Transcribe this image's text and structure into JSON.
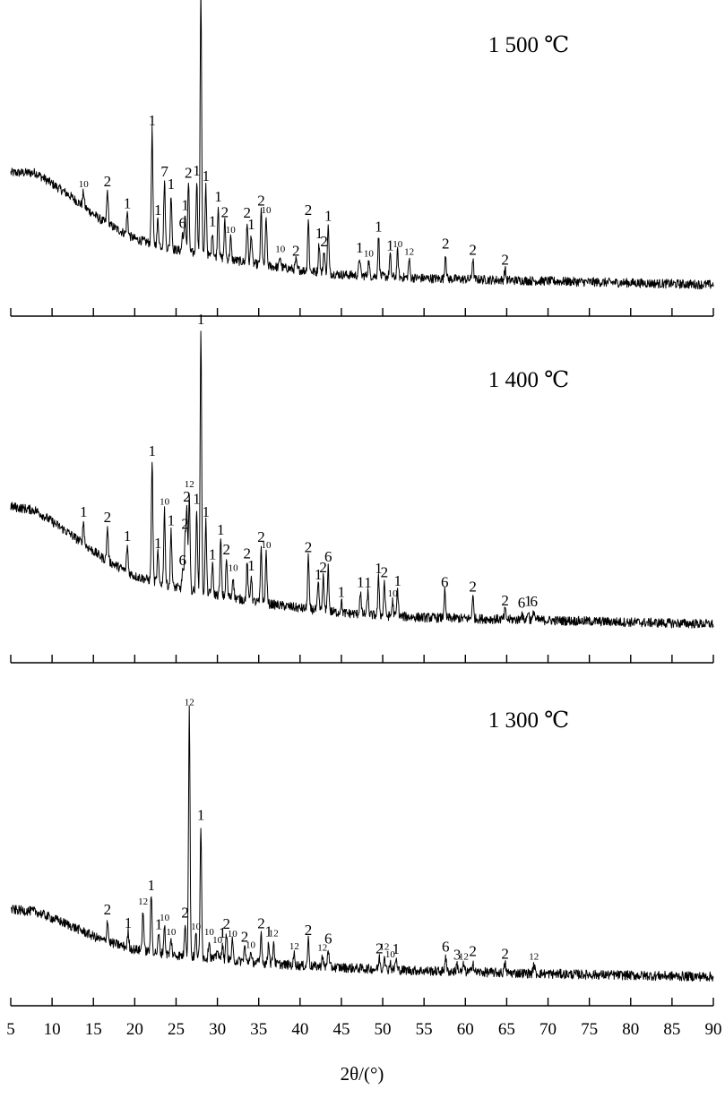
{
  "chart_data": {
    "type": "line",
    "xlabel": "2θ/(°)",
    "xlim": [
      5,
      90
    ],
    "x_ticks": [
      5,
      10,
      15,
      20,
      25,
      30,
      35,
      40,
      45,
      50,
      55,
      60,
      65,
      70,
      75,
      80,
      85,
      90
    ],
    "grid": false,
    "panels": [
      {
        "label": "1 500 ℃",
        "baseline": [
          [
            5,
            0.62
          ],
          [
            8,
            0.62
          ],
          [
            12,
            0.5
          ],
          [
            16,
            0.36
          ],
          [
            20,
            0.26
          ],
          [
            25,
            0.2
          ],
          [
            30,
            0.16
          ],
          [
            35,
            0.12
          ],
          [
            40,
            0.09
          ],
          [
            45,
            0.065
          ],
          [
            50,
            0.055
          ],
          [
            55,
            0.045
          ],
          [
            60,
            0.04
          ],
          [
            65,
            0.035
          ],
          [
            70,
            0.03
          ],
          [
            75,
            0.025
          ],
          [
            80,
            0.02
          ],
          [
            85,
            0.015
          ],
          [
            90,
            0.01
          ]
        ],
        "peaks": [
          {
            "x": 13.8,
            "h": 0.08,
            "label": "10"
          },
          {
            "x": 16.7,
            "h": 0.18,
            "label": "2"
          },
          {
            "x": 19.1,
            "h": 0.12,
            "label": "1"
          },
          {
            "x": 22.1,
            "h": 0.62,
            "label": "1"
          },
          {
            "x": 22.8,
            "h": 0.14,
            "label": "1"
          },
          {
            "x": 23.6,
            "h": 0.36,
            "label": "7"
          },
          {
            "x": 24.4,
            "h": 0.3,
            "label": "1"
          },
          {
            "x": 25.8,
            "h": 0.1,
            "label": "6"
          },
          {
            "x": 26.1,
            "h": 0.2,
            "label": "1"
          },
          {
            "x": 26.5,
            "h": 0.38,
            "label": "2"
          },
          {
            "x": 27.5,
            "h": 0.4,
            "label": "1"
          },
          {
            "x": 28.0,
            "h": 1.45,
            "label": "1"
          },
          {
            "x": 28.6,
            "h": 0.38,
            "label": "1"
          },
          {
            "x": 29.4,
            "h": 0.14,
            "label": "1"
          },
          {
            "x": 30.1,
            "h": 0.28,
            "label": "1"
          },
          {
            "x": 30.9,
            "h": 0.2,
            "label": "2"
          },
          {
            "x": 31.6,
            "h": 0.12,
            "label": "10"
          },
          {
            "x": 33.6,
            "h": 0.22,
            "label": "2"
          },
          {
            "x": 34.1,
            "h": 0.16,
            "label": "1"
          },
          {
            "x": 35.3,
            "h": 0.3,
            "label": "2"
          },
          {
            "x": 35.9,
            "h": 0.26,
            "label": "10"
          },
          {
            "x": 37.6,
            "h": 0.06,
            "label": "10"
          },
          {
            "x": 39.5,
            "h": 0.05,
            "label": "2"
          },
          {
            "x": 41.0,
            "h": 0.28,
            "label": "2"
          },
          {
            "x": 42.3,
            "h": 0.16,
            "label": "1"
          },
          {
            "x": 42.9,
            "h": 0.12,
            "label": "2"
          },
          {
            "x": 43.4,
            "h": 0.26,
            "label": "1"
          },
          {
            "x": 47.2,
            "h": 0.1,
            "label": "1"
          },
          {
            "x": 48.3,
            "h": 0.08,
            "label": "10"
          },
          {
            "x": 49.5,
            "h": 0.22,
            "label": "1"
          },
          {
            "x": 50.9,
            "h": 0.12,
            "label": "1"
          },
          {
            "x": 51.8,
            "h": 0.14,
            "label": "10"
          },
          {
            "x": 53.2,
            "h": 0.1,
            "label": "12"
          },
          {
            "x": 57.6,
            "h": 0.14,
            "label": "2"
          },
          {
            "x": 60.9,
            "h": 0.11,
            "label": "2"
          },
          {
            "x": 64.8,
            "h": 0.06,
            "label": "2"
          }
        ]
      },
      {
        "label": "1 400 ℃",
        "baseline": [
          [
            5,
            0.64
          ],
          [
            8,
            0.62
          ],
          [
            12,
            0.5
          ],
          [
            16,
            0.37
          ],
          [
            20,
            0.27
          ],
          [
            25,
            0.21
          ],
          [
            30,
            0.17
          ],
          [
            35,
            0.13
          ],
          [
            40,
            0.1
          ],
          [
            45,
            0.075
          ],
          [
            50,
            0.06
          ],
          [
            55,
            0.05
          ],
          [
            60,
            0.045
          ],
          [
            65,
            0.04
          ],
          [
            70,
            0.035
          ],
          [
            75,
            0.03
          ],
          [
            80,
            0.025
          ],
          [
            85,
            0.02
          ],
          [
            90,
            0.015
          ]
        ],
        "peaks": [
          {
            "x": 13.8,
            "h": 0.12,
            "label": "1"
          },
          {
            "x": 16.7,
            "h": 0.18,
            "label": "2"
          },
          {
            "x": 19.1,
            "h": 0.14,
            "label": "1"
          },
          {
            "x": 22.1,
            "h": 0.64,
            "label": "1"
          },
          {
            "x": 22.8,
            "h": 0.16,
            "label": "1"
          },
          {
            "x": 23.6,
            "h": 0.4,
            "label": "10"
          },
          {
            "x": 24.4,
            "h": 0.3,
            "label": "1"
          },
          {
            "x": 25.8,
            "h": 0.1,
            "label": "6"
          },
          {
            "x": 26.1,
            "h": 0.26,
            "label": "2"
          },
          {
            "x": 26.3,
            "h": 0.42,
            "label": "2"
          },
          {
            "x": 26.6,
            "h": 0.52,
            "label": "12"
          },
          {
            "x": 27.5,
            "h": 0.44,
            "label": "1"
          },
          {
            "x": 28.0,
            "h": 1.4,
            "label": "1"
          },
          {
            "x": 28.6,
            "h": 0.38,
            "label": "1"
          },
          {
            "x": 29.4,
            "h": 0.16,
            "label": "1"
          },
          {
            "x": 30.4,
            "h": 0.3,
            "label": "1"
          },
          {
            "x": 31.1,
            "h": 0.2,
            "label": "2"
          },
          {
            "x": 31.9,
            "h": 0.12,
            "label": "10"
          },
          {
            "x": 33.6,
            "h": 0.2,
            "label": "2"
          },
          {
            "x": 34.1,
            "h": 0.14,
            "label": "1"
          },
          {
            "x": 35.3,
            "h": 0.3,
            "label": "2"
          },
          {
            "x": 35.9,
            "h": 0.27,
            "label": "10"
          },
          {
            "x": 41.0,
            "h": 0.28,
            "label": "2"
          },
          {
            "x": 42.2,
            "h": 0.14,
            "label": "1"
          },
          {
            "x": 42.8,
            "h": 0.18,
            "label": "2"
          },
          {
            "x": 43.4,
            "h": 0.24,
            "label": "6"
          },
          {
            "x": 45.0,
            "h": 0.06,
            "label": "1"
          },
          {
            "x": 47.3,
            "h": 0.12,
            "label": "1"
          },
          {
            "x": 48.2,
            "h": 0.12,
            "label": "1"
          },
          {
            "x": 49.5,
            "h": 0.2,
            "label": "1"
          },
          {
            "x": 50.2,
            "h": 0.18,
            "label": "2"
          },
          {
            "x": 51.2,
            "h": 0.08,
            "label": "10"
          },
          {
            "x": 51.8,
            "h": 0.14,
            "label": "1"
          },
          {
            "x": 57.5,
            "h": 0.14,
            "label": "6"
          },
          {
            "x": 60.9,
            "h": 0.12,
            "label": "2"
          },
          {
            "x": 64.8,
            "h": 0.05,
            "label": "2"
          },
          {
            "x": 66.8,
            "h": 0.04,
            "label": "6"
          },
          {
            "x": 67.6,
            "h": 0.05,
            "label": "1"
          },
          {
            "x": 68.3,
            "h": 0.05,
            "label": "6"
          }
        ]
      },
      {
        "label": "1 300 ℃",
        "baseline": [
          [
            5,
            0.36
          ],
          [
            8,
            0.35
          ],
          [
            12,
            0.28
          ],
          [
            16,
            0.2
          ],
          [
            20,
            0.15
          ],
          [
            25,
            0.12
          ],
          [
            30,
            0.1
          ],
          [
            35,
            0.08
          ],
          [
            40,
            0.065
          ],
          [
            45,
            0.055
          ],
          [
            50,
            0.045
          ],
          [
            55,
            0.038
          ],
          [
            60,
            0.032
          ],
          [
            65,
            0.027
          ],
          [
            70,
            0.022
          ],
          [
            75,
            0.018
          ],
          [
            80,
            0.014
          ],
          [
            85,
            0.01
          ],
          [
            90,
            0.007
          ]
        ],
        "peaks": [
          {
            "x": 16.7,
            "h": 0.12,
            "label": "2"
          },
          {
            "x": 19.2,
            "h": 0.08,
            "label": "1"
          },
          {
            "x": 21.0,
            "h": 0.22,
            "label": "12"
          },
          {
            "x": 22.0,
            "h": 0.3,
            "label": "1"
          },
          {
            "x": 22.9,
            "h": 0.1,
            "label": "1"
          },
          {
            "x": 23.6,
            "h": 0.15,
            "label": "10"
          },
          {
            "x": 24.4,
            "h": 0.08,
            "label": "10"
          },
          {
            "x": 26.1,
            "h": 0.18,
            "label": "2"
          },
          {
            "x": 26.6,
            "h": 1.3,
            "label": "12"
          },
          {
            "x": 27.4,
            "h": 0.12,
            "label": "10"
          },
          {
            "x": 28.0,
            "h": 0.7,
            "label": "1"
          },
          {
            "x": 29.0,
            "h": 0.1,
            "label": "10"
          },
          {
            "x": 30.0,
            "h": 0.06,
            "label": "10"
          },
          {
            "x": 30.6,
            "h": 0.09,
            "label": "1"
          },
          {
            "x": 31.1,
            "h": 0.14,
            "label": "2"
          },
          {
            "x": 31.8,
            "h": 0.1,
            "label": "10"
          },
          {
            "x": 33.3,
            "h": 0.08,
            "label": "2"
          },
          {
            "x": 34.0,
            "h": 0.05,
            "label": "10"
          },
          {
            "x": 35.3,
            "h": 0.16,
            "label": "2"
          },
          {
            "x": 36.2,
            "h": 0.12,
            "label": "1"
          },
          {
            "x": 36.8,
            "h": 0.12,
            "label": "12"
          },
          {
            "x": 39.3,
            "h": 0.06,
            "label": "12"
          },
          {
            "x": 41.0,
            "h": 0.14,
            "label": "2"
          },
          {
            "x": 42.7,
            "h": 0.06,
            "label": "12"
          },
          {
            "x": 43.4,
            "h": 0.1,
            "label": "6"
          },
          {
            "x": 49.6,
            "h": 0.06,
            "label": "2"
          },
          {
            "x": 50.2,
            "h": 0.08,
            "label": "12"
          },
          {
            "x": 50.9,
            "h": 0.04,
            "label": "10"
          },
          {
            "x": 51.6,
            "h": 0.06,
            "label": "1"
          },
          {
            "x": 57.6,
            "h": 0.08,
            "label": "6"
          },
          {
            "x": 59.0,
            "h": 0.04,
            "label": "3"
          },
          {
            "x": 59.8,
            "h": 0.04,
            "label": "12"
          },
          {
            "x": 60.9,
            "h": 0.06,
            "label": "2"
          },
          {
            "x": 64.8,
            "h": 0.05,
            "label": "2"
          },
          {
            "x": 68.3,
            "h": 0.05,
            "label": "12"
          }
        ]
      }
    ]
  }
}
